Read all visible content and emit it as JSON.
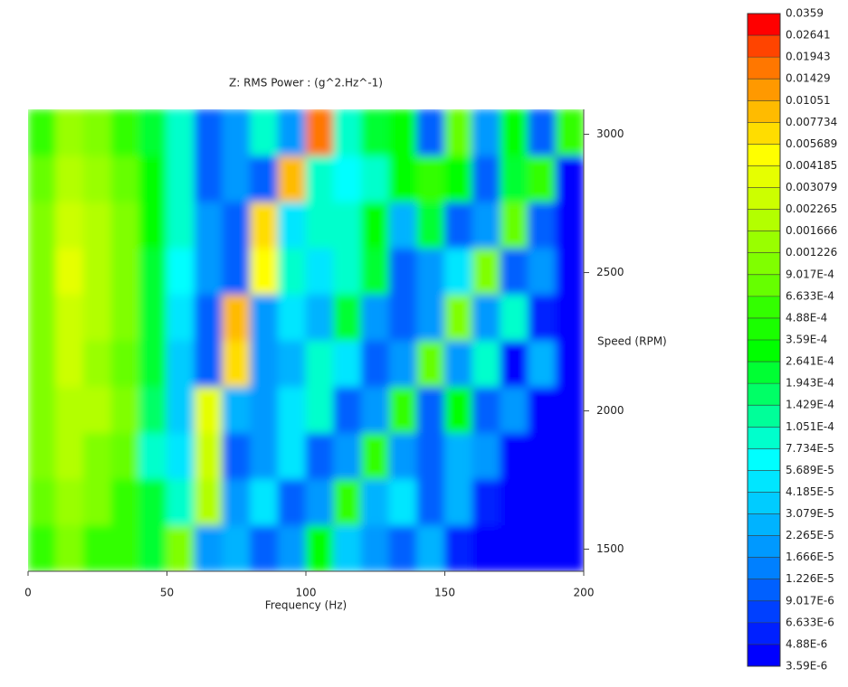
{
  "chart_data": {
    "type": "heatmap",
    "title": "Z: RMS Power : (g^2.Hz^-1)",
    "xlabel": "Frequency (Hz)",
    "ylabel": "Speed (RPM)",
    "xlim": [
      0,
      200
    ],
    "xticks": [
      0,
      50,
      100,
      150,
      200
    ],
    "ylim": [
      1420,
      3090
    ],
    "yticks": [
      1500,
      2000,
      2500,
      3000
    ],
    "xbins": [
      0,
      10,
      20,
      30,
      40,
      50,
      60,
      70,
      80,
      90,
      100,
      110,
      120,
      130,
      140,
      150,
      160,
      170,
      180,
      190,
      200
    ],
    "ybins": [
      1420,
      1587,
      1754,
      1921,
      2088,
      2255,
      2422,
      2589,
      2756,
      2923,
      3090
    ],
    "z": [
      [
        0.0005,
        0.001,
        0.0006,
        0.0005,
        0.0002,
        0.001,
        2e-05,
        3e-05,
        1e-05,
        2e-05,
        0.0003,
        4e-05,
        2e-05,
        1e-05,
        3e-05,
        5e-06,
        4e-06,
        4e-06,
        4e-06,
        4e-06
      ],
      [
        0.0008,
        0.0015,
        0.001,
        0.0006,
        0.0002,
        8e-05,
        0.002,
        2e-05,
        5e-05,
        1e-05,
        2e-05,
        0.0005,
        3e-05,
        5e-05,
        1e-05,
        3e-05,
        5e-06,
        4e-06,
        4e-06,
        4e-06
      ],
      [
        0.001,
        0.002,
        0.001,
        0.0008,
        0.0001,
        5e-05,
        0.003,
        1e-05,
        2e-05,
        5e-05,
        1e-05,
        2e-05,
        0.0006,
        2e-05,
        1e-05,
        3e-05,
        2e-05,
        4e-06,
        4e-06,
        4e-06
      ],
      [
        0.001,
        0.002,
        0.002,
        0.001,
        0.00015,
        4e-05,
        0.004,
        3e-05,
        2e-05,
        5e-05,
        8e-05,
        1e-05,
        2e-05,
        0.0006,
        1e-05,
        0.0003,
        1e-05,
        2e-05,
        4e-06,
        4e-06
      ],
      [
        0.001,
        0.003,
        0.0015,
        0.0008,
        0.0002,
        4e-05,
        1e-05,
        0.006,
        2e-05,
        3e-05,
        0.0001,
        5e-05,
        1e-05,
        2e-05,
        0.0008,
        2e-05,
        0.0001,
        4e-06,
        3e-05,
        4e-06
      ],
      [
        0.0012,
        0.003,
        0.002,
        0.001,
        0.0002,
        5e-05,
        1e-05,
        0.008,
        2e-05,
        5e-05,
        3e-05,
        0.0002,
        2e-05,
        1e-05,
        2e-05,
        0.001,
        2e-05,
        0.0001,
        5e-06,
        4e-06
      ],
      [
        0.001,
        0.004,
        0.002,
        0.001,
        0.0002,
        6e-05,
        2e-05,
        1e-05,
        0.005,
        8e-05,
        5e-05,
        0.0001,
        0.0002,
        1e-05,
        2e-05,
        5e-05,
        0.001,
        1e-05,
        2e-05,
        4e-06
      ],
      [
        0.001,
        0.003,
        0.002,
        0.001,
        0.0003,
        0.0001,
        2e-05,
        1e-05,
        0.006,
        5e-05,
        8e-05,
        0.0001,
        0.0003,
        3e-05,
        0.0002,
        1e-05,
        2e-05,
        0.0008,
        1e-05,
        4e-06
      ],
      [
        0.0008,
        0.002,
        0.0015,
        0.0008,
        0.0003,
        0.0001,
        1e-05,
        2e-05,
        1e-05,
        0.008,
        0.0001,
        6e-05,
        0.0001,
        0.0003,
        0.0005,
        0.0003,
        1e-05,
        0.0002,
        0.0006,
        4e-06
      ],
      [
        0.0006,
        0.0015,
        0.001,
        0.0006,
        0.0002,
        8e-05,
        1e-05,
        2e-05,
        0.0001,
        2e-05,
        0.015,
        0.0001,
        0.0002,
        0.0003,
        1e-05,
        0.0008,
        2e-05,
        0.0003,
        1e-05,
        0.0005
      ]
    ],
    "colorbar": {
      "log": true,
      "lim": [
        3.59e-06,
        0.0359
      ],
      "ticks": [
        {
          "value": 3.59e-06,
          "label": "3.59E-6"
        },
        {
          "value": 4.88e-06,
          "label": "4.88E-6"
        },
        {
          "value": 6.633e-06,
          "label": "6.633E-6"
        },
        {
          "value": 9.017e-06,
          "label": "9.017E-6"
        },
        {
          "value": 1.226e-05,
          "label": "1.226E-5"
        },
        {
          "value": 1.666e-05,
          "label": "1.666E-5"
        },
        {
          "value": 2.265e-05,
          "label": "2.265E-5"
        },
        {
          "value": 3.079e-05,
          "label": "3.079E-5"
        },
        {
          "value": 4.185e-05,
          "label": "4.185E-5"
        },
        {
          "value": 5.689e-05,
          "label": "5.689E-5"
        },
        {
          "value": 7.734e-05,
          "label": "7.734E-5"
        },
        {
          "value": 0.0001051,
          "label": "1.051E-4"
        },
        {
          "value": 0.0001429,
          "label": "1.429E-4"
        },
        {
          "value": 0.0001943,
          "label": "1.943E-4"
        },
        {
          "value": 0.0002641,
          "label": "2.641E-4"
        },
        {
          "value": 0.000359,
          "label": "3.59E-4"
        },
        {
          "value": 0.000488,
          "label": "4.88E-4"
        },
        {
          "value": 0.0006633,
          "label": "6.633E-4"
        },
        {
          "value": 0.0009017,
          "label": "9.017E-4"
        },
        0.001226,
        0.001666,
        0.002265,
        0.003079,
        0.004185,
        0.005689,
        0.007734,
        0.01051,
        0.01429,
        0.01943,
        0.02641,
        0.0359
      ],
      "colors": [
        "#0000ff",
        "#0020ff",
        "#0040ff",
        "#0060ff",
        "#0080ff",
        "#0099ff",
        "#00b3ff",
        "#00ccff",
        "#00e6ff",
        "#00ffff",
        "#00ffcc",
        "#00ff99",
        "#00ff66",
        "#00ff33",
        "#00ff00",
        "#1aff00",
        "#33ff00",
        "#66ff00",
        "#80ff00",
        "#99ff00",
        "#b3ff00",
        "#ccff00",
        "#e6ff00",
        "#ffff00",
        "#ffdd00",
        "#ffbb00",
        "#ff9900",
        "#ff7700",
        "#ff4400",
        "#ff0000"
      ]
    }
  }
}
